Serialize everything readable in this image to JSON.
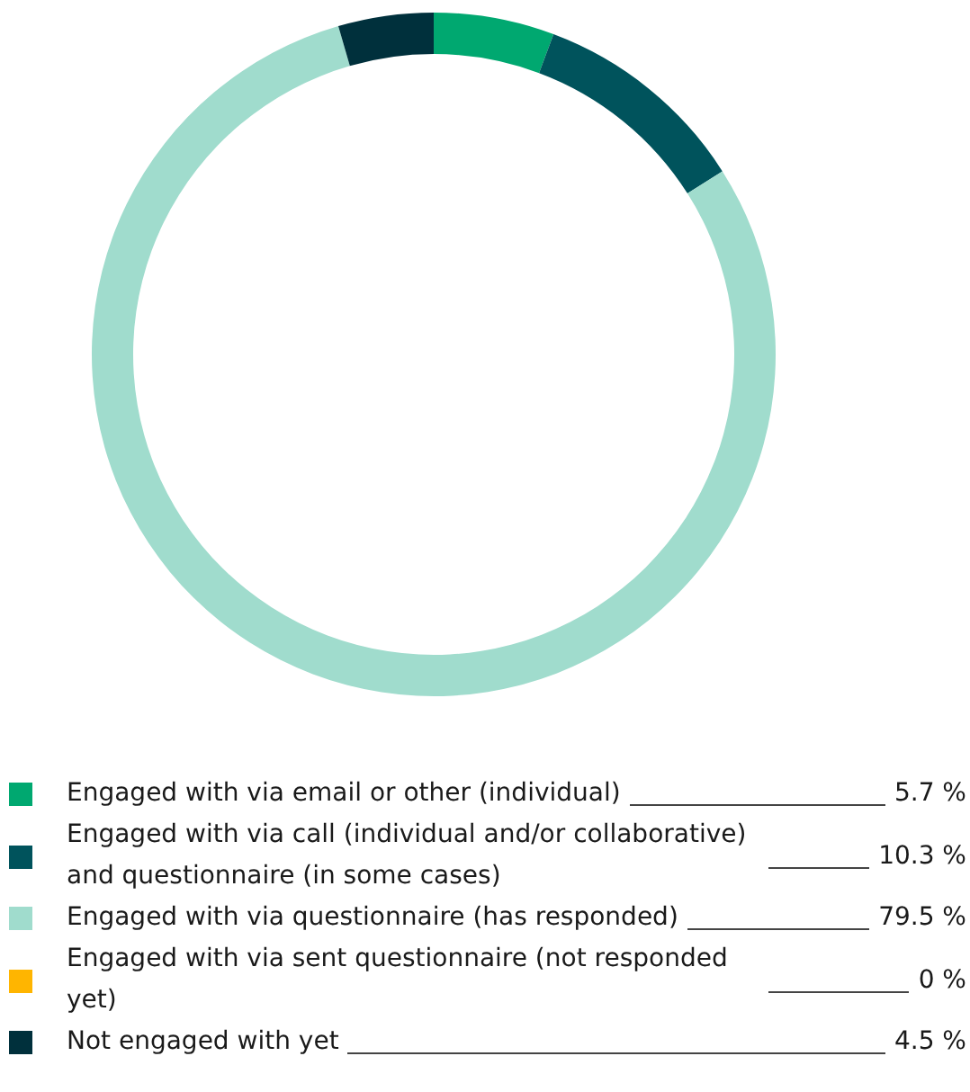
{
  "chart_data": {
    "type": "donut",
    "categories": [
      "Engaged with via email or other (individual)",
      "Engaged with via call (individual and/or collaborative) and questionnaire (in some cases)",
      "Engaged with via questionnaire (has responded)",
      "Engaged with via sent questionnaire (not responded yet)",
      "Not engaged with yet"
    ],
    "values": [
      5.7,
      10.3,
      79.5,
      0,
      4.5
    ],
    "value_labels": [
      "5.7 %",
      "10.3 %",
      "79.5 %",
      "0 %",
      "4.5 %"
    ],
    "colors": [
      "#00a870",
      "#00535c",
      "#a0dccd",
      "#ffb500",
      "#00303c"
    ],
    "legend": "bottom"
  }
}
